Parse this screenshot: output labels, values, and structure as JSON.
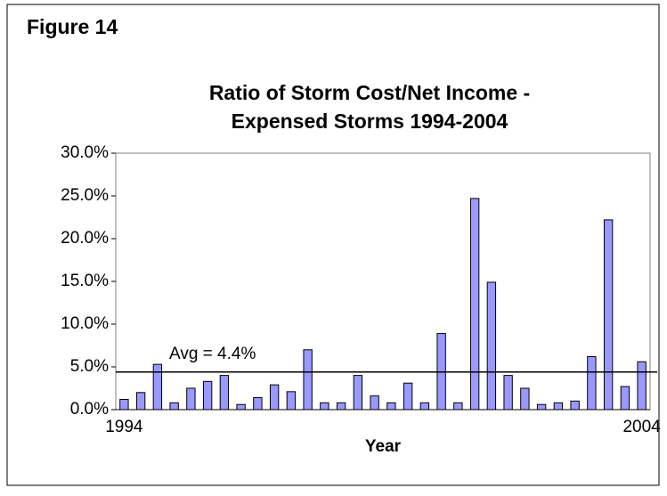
{
  "figure_label": "Figure 14",
  "chart_data": {
    "type": "bar",
    "title": "Ratio of Storm Cost/Net Income -",
    "subtitle": "Expensed Storms 1994-2004",
    "x_label": "Year",
    "categories": [
      "1994",
      null,
      null,
      null,
      null,
      null,
      null,
      null,
      null,
      null,
      null,
      null,
      null,
      null,
      null,
      null,
      null,
      null,
      null,
      null,
      null,
      null,
      null,
      null,
      null,
      null,
      null,
      null,
      null,
      null,
      null,
      "2004"
    ],
    "values": [
      1.2,
      2.0,
      5.3,
      0.8,
      2.5,
      3.3,
      4.0,
      0.6,
      1.4,
      2.9,
      2.1,
      7.0,
      0.8,
      0.8,
      4.0,
      1.6,
      0.8,
      3.1,
      0.8,
      8.9,
      0.8,
      24.7,
      14.9,
      4.0,
      2.5,
      0.6,
      0.8,
      1.0,
      6.2,
      22.2,
      2.7,
      5.6
    ],
    "color": "#9999ff",
    "ylim": [
      0,
      30
    ],
    "yticks": [
      {
        "value": 0,
        "label": "0.0%"
      },
      {
        "value": 5,
        "label": "5.0%"
      },
      {
        "value": 10,
        "label": "10.0%"
      },
      {
        "value": 15,
        "label": "15.0%"
      },
      {
        "value": 20,
        "label": "20.0%"
      },
      {
        "value": 25,
        "label": "25.0%"
      },
      {
        "value": 30,
        "label": "30.0%"
      }
    ],
    "reference_line": {
      "value": 4.4,
      "label": "Avg = 4.4%"
    },
    "grid": false
  }
}
